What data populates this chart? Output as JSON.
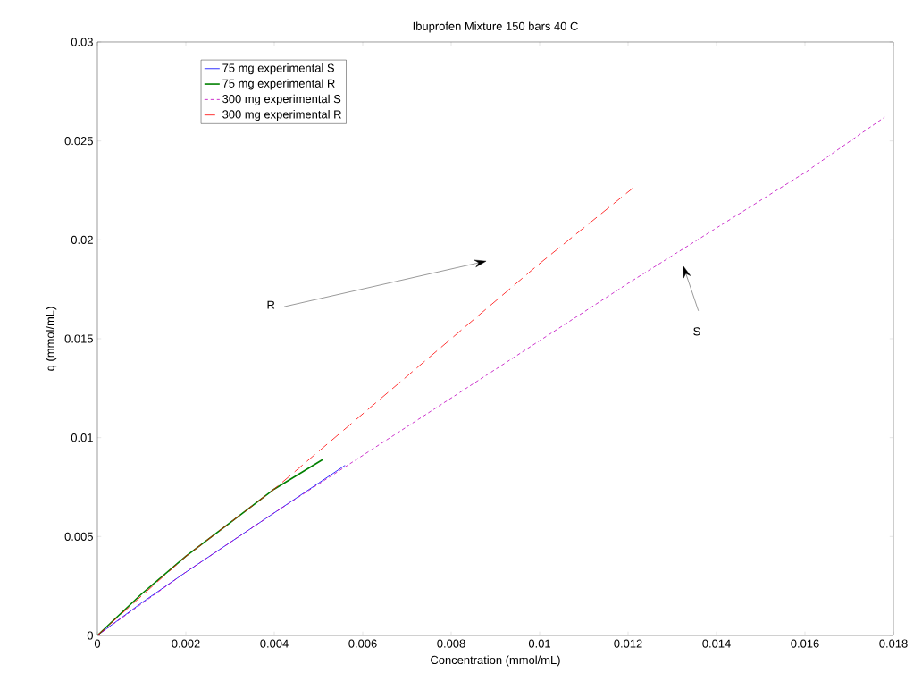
{
  "chart_data": {
    "type": "line",
    "title": "Ibuprofen Mixture 150 bars 40 C",
    "xlabel": "Concentration (mmol/mL)",
    "ylabel": "q (mmol/mL)",
    "xlim": [
      0,
      0.018
    ],
    "xticks": [
      0,
      0.002,
      0.004,
      0.006,
      0.008,
      0.01,
      0.012,
      0.014,
      0.016,
      0.018
    ],
    "ylim": [
      0,
      0.03
    ],
    "yticks": [
      0,
      0.005,
      0.01,
      0.015,
      0.02,
      0.025,
      0.03
    ],
    "legend": "top left",
    "grid": false,
    "series": [
      {
        "name": "75 mg experimental S",
        "color": "#0000ff",
        "line_style": "solid",
        "x": [
          0,
          0.001,
          0.002,
          0.003,
          0.004,
          0.005,
          0.0056
        ],
        "values": [
          0,
          0.00165,
          0.0032,
          0.0047,
          0.0062,
          0.0077,
          0.0086
        ]
      },
      {
        "name": "75 mg experimental R",
        "color": "#008000",
        "line_style": "solid",
        "x": [
          0,
          0.001,
          0.002,
          0.003,
          0.004,
          0.0051
        ],
        "values": [
          0,
          0.0021,
          0.004,
          0.0057,
          0.0074,
          0.0089
        ]
      },
      {
        "name": "300 mg experimental S",
        "color": "#bf00bf",
        "line_style": "dotted",
        "x": [
          0,
          0.002,
          0.004,
          0.006,
          0.008,
          0.01,
          0.012,
          0.014,
          0.016,
          0.0178
        ],
        "values": [
          0,
          0.0032,
          0.0062,
          0.0091,
          0.012,
          0.0149,
          0.0178,
          0.0206,
          0.0234,
          0.0262
        ]
      },
      {
        "name": "300 mg experimental R",
        "color": "#ff0000",
        "line_style": "dashed",
        "x": [
          0,
          0.002,
          0.004,
          0.006,
          0.008,
          0.01,
          0.0121
        ],
        "values": [
          0,
          0.004,
          0.0074,
          0.0112,
          0.015,
          0.0188,
          0.0226
        ]
      }
    ],
    "annotations": [
      "R",
      "S"
    ]
  }
}
